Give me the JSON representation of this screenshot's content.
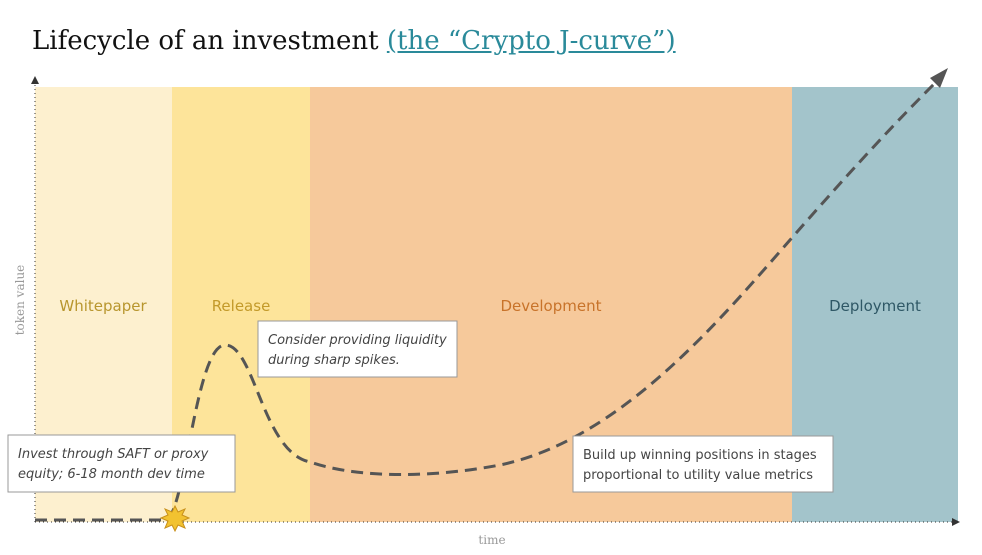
{
  "header": {
    "title": "Lifecycle of an investment",
    "title_link": "(the “Crypto J-curve”)"
  },
  "axes": {
    "y_label": "token value",
    "x_label": "time"
  },
  "phases": [
    {
      "label": "Whitepaper"
    },
    {
      "label": "Release"
    },
    {
      "label": "Development"
    },
    {
      "label": "Deployment"
    }
  ],
  "notes": [
    {
      "lines": [
        "Invest through SAFT or proxy",
        "equity; 6-18 month dev time"
      ]
    },
    {
      "lines": [
        "Consider providing liquidity",
        "during sharp spikes."
      ]
    },
    {
      "lines": [
        "Build up winning positions in stages",
        "proportional to utility value metrics"
      ]
    }
  ]
}
